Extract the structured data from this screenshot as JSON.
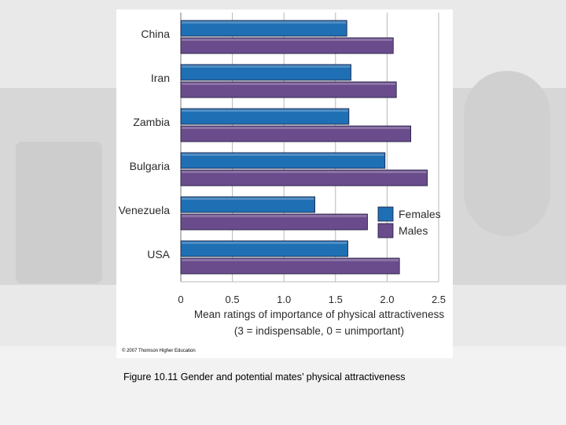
{
  "colors": {
    "females": "#1f6fb4",
    "males": "#6a4c8c",
    "bar_outline": "#1a1a3a",
    "grid": "#b8b8b8",
    "text": "#2b2b2b"
  },
  "chart_data": {
    "type": "bar",
    "orientation": "horizontal",
    "categories": [
      "China",
      "Iran",
      "Zambia",
      "Bulgaria",
      "Venezuela",
      "USA"
    ],
    "series": [
      {
        "name": "Females",
        "values": [
          1.61,
          1.65,
          1.63,
          1.98,
          1.3,
          1.62
        ]
      },
      {
        "name": "Males",
        "values": [
          2.06,
          2.09,
          2.23,
          2.39,
          1.81,
          2.12
        ]
      }
    ],
    "xlim": [
      0,
      2.5
    ],
    "xticks": [
      "0",
      "0.5",
      "1.0",
      "1.5",
      "2.0",
      "2.5"
    ],
    "xlabel_line1": "Mean ratings of importance of physical attractiveness",
    "xlabel_line2": "(3 = indispensable, 0 = unimportant)",
    "grid": true,
    "legend_position": "right"
  },
  "copyright": "© 2007 Thomson Higher Education",
  "caption": "Figure 10.11  Gender and potential mates’ physical attractiveness"
}
